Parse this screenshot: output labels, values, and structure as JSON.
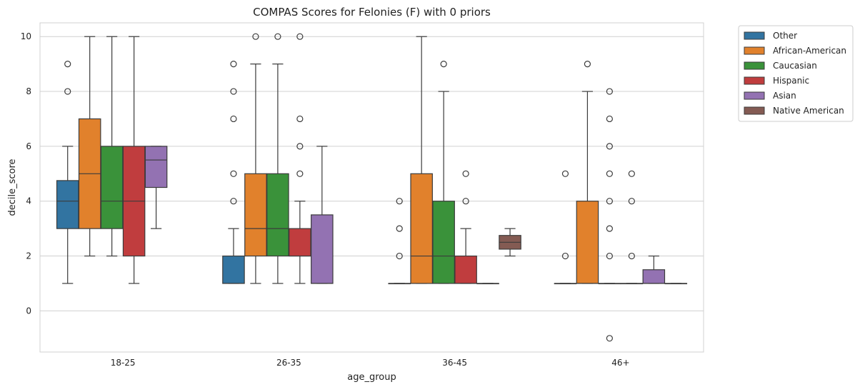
{
  "chart_data": {
    "type": "box",
    "title": "COMPAS Scores for Felonies (F) with 0 priors",
    "xlabel": "age_group",
    "ylabel": "decile_score",
    "ylim": [
      -1.5,
      10.5
    ],
    "yticks": [
      0,
      2,
      4,
      6,
      8,
      10
    ],
    "grid": "horizontal",
    "legend_position": "outside-right",
    "categories": [
      "18-25",
      "26-35",
      "36-45",
      "46+"
    ],
    "series": [
      {
        "name": "Other",
        "color": "#3274a1",
        "boxes": [
          {
            "whisker_low": 1,
            "q1": 3,
            "median": 4,
            "q3": 4.75,
            "whisker_high": 6,
            "outliers": [
              8,
              9
            ]
          },
          {
            "whisker_low": 1,
            "q1": 1,
            "median": 1,
            "q3": 2,
            "whisker_high": 3,
            "outliers": [
              4,
              5,
              7,
              8,
              9
            ]
          },
          {
            "whisker_low": 1,
            "q1": 1,
            "median": 1,
            "q3": 1,
            "whisker_high": 1,
            "outliers": [
              2,
              3,
              4
            ]
          },
          {
            "whisker_low": 1,
            "q1": 1,
            "median": 1,
            "q3": 1,
            "whisker_high": 1,
            "outliers": [
              2,
              5
            ]
          }
        ]
      },
      {
        "name": "African-American",
        "color": "#e1812c",
        "boxes": [
          {
            "whisker_low": 2,
            "q1": 3,
            "median": 5,
            "q3": 7,
            "whisker_high": 10,
            "outliers": []
          },
          {
            "whisker_low": 1,
            "q1": 2,
            "median": 3,
            "q3": 5,
            "whisker_high": 9,
            "outliers": [
              10
            ]
          },
          {
            "whisker_low": 1,
            "q1": 1,
            "median": 2,
            "q3": 5,
            "whisker_high": 10,
            "outliers": []
          },
          {
            "whisker_low": 1,
            "q1": 1,
            "median": 1,
            "q3": 4,
            "whisker_high": 8,
            "outliers": [
              9
            ]
          }
        ]
      },
      {
        "name": "Caucasian",
        "color": "#3a923a",
        "boxes": [
          {
            "whisker_low": 2,
            "q1": 3,
            "median": 4,
            "q3": 6,
            "whisker_high": 10,
            "outliers": []
          },
          {
            "whisker_low": 1,
            "q1": 2,
            "median": 3,
            "q3": 5,
            "whisker_high": 9,
            "outliers": [
              10
            ]
          },
          {
            "whisker_low": 1,
            "q1": 1,
            "median": 2,
            "q3": 4,
            "whisker_high": 8,
            "outliers": [
              9
            ]
          },
          {
            "whisker_low": 1,
            "q1": 1,
            "median": 1,
            "q3": 1,
            "whisker_high": 1,
            "outliers": [
              -1,
              2,
              3,
              4,
              5,
              6,
              7,
              8
            ]
          }
        ]
      },
      {
        "name": "Hispanic",
        "color": "#c03d3e",
        "boxes": [
          {
            "whisker_low": 1,
            "q1": 2,
            "median": 4,
            "q3": 6,
            "whisker_high": 10,
            "outliers": []
          },
          {
            "whisker_low": 1,
            "q1": 2,
            "median": 2,
            "q3": 3,
            "whisker_high": 4,
            "outliers": [
              5,
              6,
              7,
              10
            ]
          },
          {
            "whisker_low": 1,
            "q1": 1,
            "median": 1,
            "q3": 2,
            "whisker_high": 3,
            "outliers": [
              4,
              5
            ]
          },
          {
            "whisker_low": 1,
            "q1": 1,
            "median": 1,
            "q3": 1,
            "whisker_high": 1,
            "outliers": [
              2,
              4,
              5
            ]
          }
        ]
      },
      {
        "name": "Asian",
        "color": "#9372b2",
        "boxes": [
          {
            "whisker_low": 3,
            "q1": 4.5,
            "median": 5.5,
            "q3": 6,
            "whisker_high": 6,
            "outliers": []
          },
          {
            "whisker_low": 1,
            "q1": 1,
            "median": 1,
            "q3": 3.5,
            "whisker_high": 6,
            "outliers": []
          },
          {
            "whisker_low": 1,
            "q1": 1,
            "median": 1,
            "q3": 1,
            "whisker_high": 1,
            "outliers": []
          },
          {
            "whisker_low": 1,
            "q1": 1,
            "median": 1,
            "q3": 1.5,
            "whisker_high": 2,
            "outliers": []
          }
        ]
      },
      {
        "name": "Native American",
        "color": "#845b53",
        "boxes": [
          null,
          null,
          {
            "whisker_low": 2,
            "q1": 2.25,
            "median": 2.5,
            "q3": 2.75,
            "whisker_high": 3,
            "outliers": []
          },
          {
            "whisker_low": 1,
            "q1": 1,
            "median": 1,
            "q3": 1,
            "whisker_high": 1,
            "outliers": []
          }
        ]
      }
    ]
  }
}
